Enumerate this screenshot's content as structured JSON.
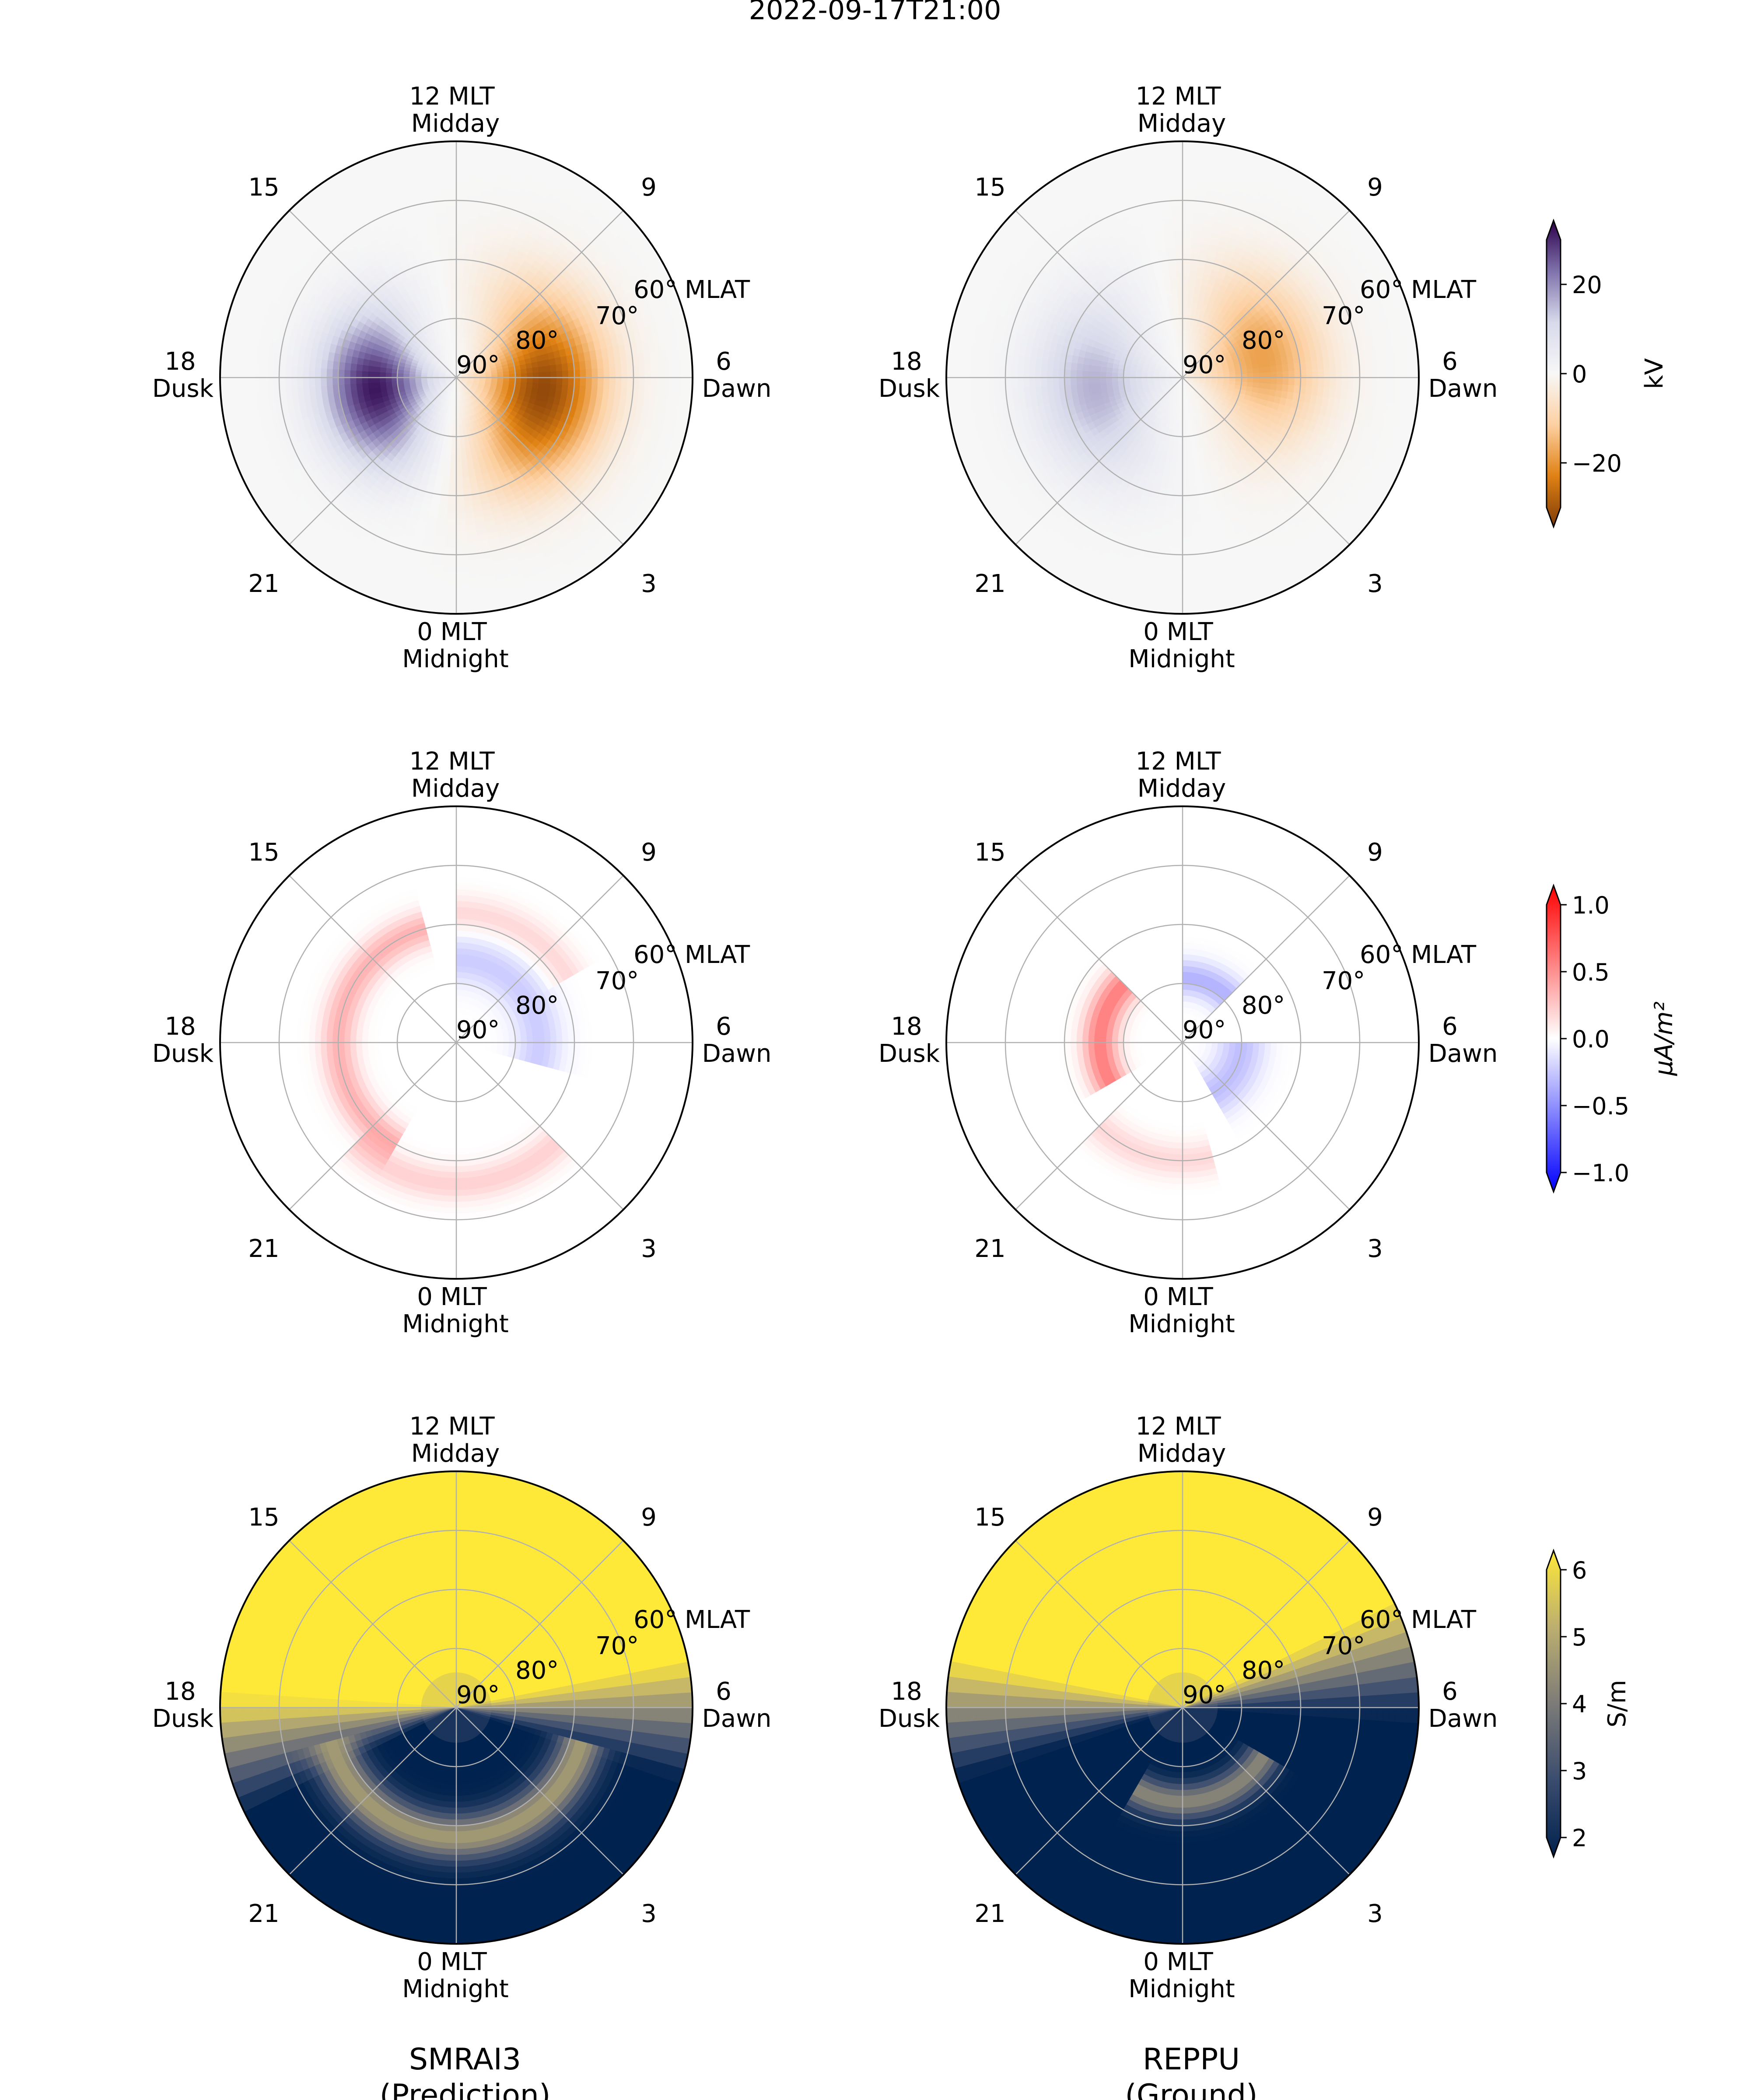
{
  "title": "2022-09-17T21:00",
  "column_titles": [
    {
      "line1": "SMRAI3",
      "line2": "(Prediction)"
    },
    {
      "line1": "REPPU",
      "line2": "(Ground)"
    }
  ],
  "polar_labels": {
    "top": [
      "12 MLT",
      "Midday"
    ],
    "bottom": [
      "0 MLT",
      "Midnight"
    ],
    "left": [
      "18",
      "Dusk"
    ],
    "right": [
      "6",
      "Dawn"
    ],
    "h15": "15",
    "h9": "9",
    "h21": "21",
    "h3": "3",
    "lat60": "60° MLAT",
    "lat70": "70°",
    "lat80": "80°",
    "lat90": "90°"
  },
  "colorbars": [
    {
      "label": "kV",
      "ticks": [
        "20",
        "0",
        "−20"
      ],
      "tick_values": [
        20,
        0,
        -20
      ],
      "range": [
        -30,
        30
      ],
      "colors": [
        "#7f3b08",
        "#e08214",
        "#fdd0a2",
        "#f7f7f7",
        "#d8daeb",
        "#8073ac",
        "#2d004b"
      ]
    },
    {
      "label": "μA/m²",
      "ticks": [
        "1.0",
        "0.5",
        "0.0",
        "−0.5",
        "−1.0"
      ],
      "tick_values": [
        1.0,
        0.5,
        0.0,
        -0.5,
        -1.0
      ],
      "range": [
        -1,
        1
      ],
      "colors": [
        "#0000ff",
        "#8080ff",
        "#ffffff",
        "#ff8080",
        "#ff0000"
      ]
    },
    {
      "label": "S/m",
      "ticks": [
        "6",
        "5",
        "4",
        "3",
        "2"
      ],
      "tick_values": [
        6,
        5,
        4,
        3,
        2
      ],
      "range": [
        2,
        6
      ],
      "colors": [
        "#00224e",
        "#3a4c6e",
        "#7c7b78",
        "#bcaf6f",
        "#fee838"
      ]
    }
  ],
  "chart_data": [
    {
      "type": "heatmap",
      "projection": "polar",
      "row": 1,
      "column": "SMRAI3 (Prediction)",
      "unit": "kV",
      "rlim_mlat": [
        50,
        90
      ],
      "theta_ticks_mlt": [
        0,
        3,
        6,
        9,
        12,
        15,
        18,
        21
      ],
      "r_ticks_mlat": [
        60,
        70,
        80,
        90
      ],
      "blobs": [
        {
          "mlt": 18.6,
          "mlat": 76,
          "value": 28,
          "width_mlt": 3.2,
          "width_mlat": 9
        },
        {
          "mlt": 5.4,
          "mlat": 75,
          "value": -28,
          "width_mlt": 3.8,
          "width_mlat": 10
        }
      ]
    },
    {
      "type": "heatmap",
      "projection": "polar",
      "row": 1,
      "column": "REPPU (Ground)",
      "unit": "kV",
      "rlim_mlat": [
        50,
        90
      ],
      "theta_ticks_mlt": [
        0,
        3,
        6,
        9,
        12,
        15,
        18,
        21
      ],
      "r_ticks_mlat": [
        60,
        70,
        80,
        90
      ],
      "blobs": [
        {
          "mlt": 18.5,
          "mlat": 75,
          "value": 14,
          "width_mlt": 3.5,
          "width_mlat": 10
        },
        {
          "mlt": 7.0,
          "mlat": 76,
          "value": -16,
          "width_mlt": 3.5,
          "width_mlat": 10
        }
      ]
    },
    {
      "type": "heatmap",
      "projection": "polar",
      "row": 2,
      "column": "SMRAI3 (Prediction)",
      "unit": "μA/m²",
      "rlim_mlat": [
        50,
        90
      ],
      "theta_ticks_mlt": [
        0,
        3,
        6,
        9,
        12,
        15,
        18,
        21
      ],
      "r_ticks_mlat": [
        60,
        70,
        80,
        90
      ],
      "bands": [
        {
          "mlt_start": 13,
          "mlt_end": 22,
          "mlat": 70,
          "value": 0.3,
          "width_mlat": 3
        },
        {
          "mlt_start": 21,
          "mlt_end": 27,
          "mlat": 66,
          "value": 0.18,
          "width_mlat": 3
        },
        {
          "mlt_start": 5,
          "mlt_end": 12,
          "mlat": 76,
          "value": -0.2,
          "width_mlat": 4
        },
        {
          "mlt_start": 8,
          "mlt_end": 12,
          "mlat": 68,
          "value": 0.15,
          "width_mlat": 3
        }
      ]
    },
    {
      "type": "heatmap",
      "projection": "polar",
      "row": 2,
      "column": "REPPU (Ground)",
      "unit": "μA/m²",
      "rlim_mlat": [
        50,
        90
      ],
      "theta_ticks_mlt": [
        0,
        3,
        6,
        9,
        12,
        15,
        18,
        21
      ],
      "r_ticks_mlat": [
        60,
        70,
        80,
        90
      ],
      "bands": [
        {
          "mlt_start": 15,
          "mlt_end": 20,
          "mlat": 76,
          "value": 0.5,
          "width_mlat": 3
        },
        {
          "mlt_start": 9,
          "mlt_end": 12,
          "mlat": 79,
          "value": -0.3,
          "width_mlat": 3
        },
        {
          "mlt_start": 2,
          "mlt_end": 6,
          "mlat": 80,
          "value": -0.25,
          "width_mlat": 4
        },
        {
          "mlt_start": 21,
          "mlt_end": 25,
          "mlat": 70,
          "value": 0.15,
          "width_mlat": 3
        }
      ]
    },
    {
      "type": "heatmap",
      "projection": "polar",
      "row": 3,
      "column": "SMRAI3 (Prediction)",
      "unit": "S/m",
      "rlim_mlat": [
        50,
        90
      ],
      "theta_ticks_mlt": [
        0,
        3,
        6,
        9,
        12,
        15,
        18,
        21
      ],
      "r_ticks_mlat": [
        60,
        70,
        80,
        90
      ],
      "day_value": 6,
      "night_value": 2,
      "terminator_mlt": [
        5.8,
        18.8
      ],
      "oval": {
        "mlat": 68,
        "mlt_start": 19,
        "mlt_end": 29,
        "value": 4.6,
        "width_mlat": 4
      }
    },
    {
      "type": "heatmap",
      "projection": "polar",
      "row": 3,
      "column": "REPPU (Ground)",
      "unit": "S/m",
      "rlim_mlat": [
        50,
        90
      ],
      "theta_ticks_mlt": [
        0,
        3,
        6,
        9,
        12,
        15,
        18,
        21
      ],
      "r_ticks_mlat": [
        60,
        70,
        80,
        90
      ],
      "day_value": 6,
      "night_value": 2,
      "terminator_mlt": [
        6.8,
        18.2
      ],
      "oval": {
        "mlat": 74,
        "mlt_start": 22,
        "mlt_end": 28,
        "value": 4.2,
        "width_mlat": 3
      }
    }
  ]
}
